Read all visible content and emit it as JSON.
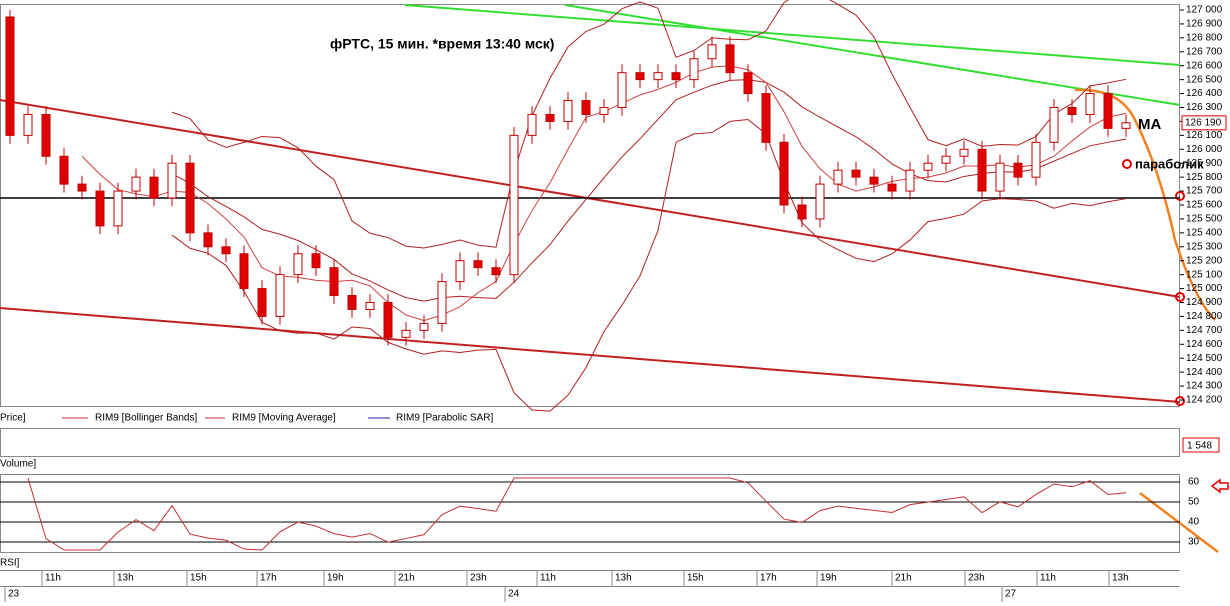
{
  "chart_data": {
    "type": "candlestick",
    "title": "фРТС,  15 мин. *время 13:40 мск)",
    "open": [
      126950,
      126100,
      126250,
      125950,
      125750,
      125700,
      125450,
      125700,
      125800,
      125650,
      125900,
      125400,
      125300,
      125250,
      125000,
      124800,
      125100,
      125250,
      125150,
      124950,
      124850,
      124900,
      124650,
      124700,
      124750,
      125050,
      125200,
      125150,
      125100,
      126100,
      126250,
      126200,
      126350,
      126250,
      126300,
      126550,
      126500,
      126550,
      126500,
      126650,
      126750,
      126550,
      126400,
      126050,
      125600,
      125500,
      125750,
      125850,
      125800,
      125750,
      125700,
      125850,
      125900,
      125950,
      126000,
      125700,
      125900,
      125800,
      126050,
      126300,
      126250,
      126400,
      126150
    ],
    "high": [
      127000,
      126310,
      126310,
      126010,
      125810,
      125760,
      125760,
      125860,
      125860,
      125960,
      125960,
      125460,
      125360,
      125310,
      125060,
      125160,
      125310,
      125310,
      125210,
      125010,
      124960,
      124960,
      124760,
      124810,
      125110,
      125260,
      125260,
      125210,
      126160,
      126310,
      126310,
      126410,
      126410,
      126360,
      126610,
      126610,
      126610,
      126610,
      126710,
      126810,
      126810,
      126610,
      126460,
      126110,
      125660,
      125810,
      125910,
      125910,
      125860,
      125810,
      125910,
      125960,
      126010,
      126060,
      126060,
      125960,
      125960,
      126110,
      126360,
      126360,
      126460,
      126460,
      126250
    ],
    "low": [
      126040,
      126040,
      125890,
      125690,
      125640,
      125390,
      125390,
      125640,
      125590,
      125590,
      125340,
      125240,
      125190,
      124940,
      124740,
      124740,
      125040,
      125090,
      124890,
      124790,
      124790,
      124590,
      124590,
      124640,
      124690,
      124990,
      125090,
      125040,
      125040,
      126040,
      126140,
      126140,
      126190,
      126190,
      126240,
      126440,
      126440,
      126440,
      126440,
      126590,
      126490,
      126340,
      125990,
      125540,
      125440,
      125440,
      125690,
      125740,
      125690,
      125640,
      125640,
      125790,
      125840,
      125890,
      125640,
      125640,
      125740,
      125740,
      125990,
      126190,
      126190,
      126090,
      126090
    ],
    "close": [
      126100,
      126250,
      125950,
      125750,
      125700,
      125450,
      125700,
      125800,
      125650,
      125900,
      125400,
      125300,
      125250,
      125000,
      124800,
      125100,
      125250,
      125150,
      124950,
      124850,
      124900,
      124650,
      124700,
      124750,
      125050,
      125200,
      125150,
      125100,
      126100,
      126250,
      126200,
      126350,
      126250,
      126300,
      126550,
      126500,
      126550,
      126500,
      126650,
      126750,
      126550,
      126400,
      126050,
      125600,
      125500,
      125750,
      125850,
      125800,
      125750,
      125700,
      125850,
      125900,
      125950,
      126000,
      125700,
      125900,
      125800,
      126050,
      126300,
      126250,
      126400,
      126150,
      126190
    ],
    "up_color": "#ffffff",
    "down_color": "#e00000",
    "last_label": "126 190",
    "level": 125650,
    "ylim": [
      124200,
      127000
    ],
    "yticks": [
      {
        "value": 127000,
        "label": "127 000"
      },
      {
        "value": 126900,
        "label": "126 900"
      },
      {
        "value": 126800,
        "label": "126 800"
      },
      {
        "value": 126700,
        "label": "126 700"
      },
      {
        "value": 126600,
        "label": "126 600"
      },
      {
        "value": 126500,
        "label": "126 500"
      },
      {
        "value": 126400,
        "label": "126 400"
      },
      {
        "value": 126300,
        "label": "126 300"
      },
      {
        "value": 126200,
        "label": "126 200"
      },
      {
        "value": 126100,
        "label": "126 100"
      },
      {
        "value": 126000,
        "label": "126 000"
      },
      {
        "value": 125900,
        "label": "125 900"
      },
      {
        "value": 125800,
        "label": "125 800"
      },
      {
        "value": 125700,
        "label": "125 700"
      },
      {
        "value": 125600,
        "label": "125 600"
      },
      {
        "value": 125500,
        "label": "125 500"
      },
      {
        "value": 125400,
        "label": "125 400"
      },
      {
        "value": 125300,
        "label": "125 300"
      },
      {
        "value": 125200,
        "label": "125 200"
      },
      {
        "value": 125100,
        "label": "125 100"
      },
      {
        "value": 125000,
        "label": "125 000"
      },
      {
        "value": 124900,
        "label": "124 900"
      },
      {
        "value": 124800,
        "label": "124 800"
      },
      {
        "value": 124700,
        "label": "124 700"
      },
      {
        "value": 124600,
        "label": "124 600"
      },
      {
        "value": 124500,
        "label": "124 500"
      },
      {
        "value": 124400,
        "label": "124 400"
      },
      {
        "value": 124300,
        "label": "124 300"
      },
      {
        "value": 124200,
        "label": "124 200"
      }
    ],
    "legend": [
      "Price]",
      "RIM9 [Bollinger Bands]",
      "RIM9 [Moving Average]",
      "RIM9 [Parabolic SAR]"
    ],
    "annotations": [
      "MA",
      "параболик"
    ],
    "volume_title": "Volume]",
    "volume_last": "1 548",
    "rsi_title": "RSI]",
    "rsi_ylim": [
      26,
      62
    ],
    "rsi_yticks": [
      30,
      40,
      50,
      60
    ],
    "time_labels": [
      "11h",
      "13h",
      "15h",
      "17h",
      "19h",
      "21h",
      "23h",
      "11h",
      "13h",
      "15h",
      "17h",
      "19h",
      "21h",
      "23h",
      "11h",
      "13h"
    ],
    "day_labels": [
      "23",
      "24",
      "27"
    ]
  }
}
